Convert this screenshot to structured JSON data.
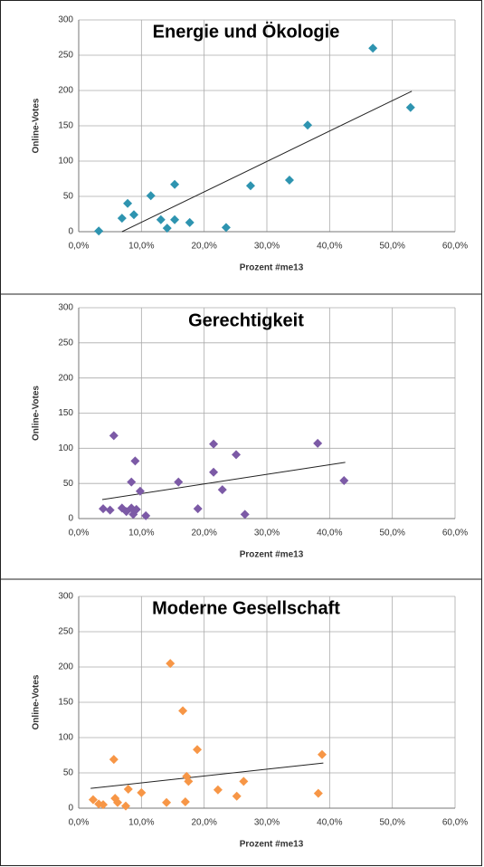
{
  "chart_data": [
    {
      "type": "scatter",
      "title": "Energie und Ökologie",
      "xlabel": "Prozent #me13",
      "ylabel": "Online-Votes",
      "color": "#2e94b0",
      "x": [
        3.2,
        6.9,
        7.8,
        8.8,
        11.5,
        13.1,
        14.1,
        15.3,
        15.3,
        17.7,
        23.5,
        27.4,
        33.6,
        36.5,
        46.9,
        52.9
      ],
      "y": [
        1,
        19,
        40,
        24,
        51,
        17,
        5,
        67,
        17,
        13,
        6,
        65,
        73,
        151,
        260,
        176
      ],
      "trend": {
        "x": [
          6.9,
          53.1
        ],
        "y": [
          0,
          199
        ]
      },
      "xlim": [
        0,
        60
      ],
      "ylim": [
        0,
        300
      ],
      "xticks": [
        {
          "value": 0,
          "label": "0,0%"
        },
        {
          "value": 10,
          "label": "10,0%"
        },
        {
          "value": 20,
          "label": "20,0%"
        },
        {
          "value": 30,
          "label": "30,0%"
        },
        {
          "value": 40,
          "label": "40,0%"
        },
        {
          "value": 50,
          "label": "50,0%"
        },
        {
          "value": 60,
          "label": "60,0%"
        }
      ],
      "yticks": [
        0,
        50,
        100,
        150,
        200,
        250,
        300
      ],
      "grid": true
    },
    {
      "type": "scatter",
      "title": "Gerechtigkeit",
      "xlabel": "Prozent #me13",
      "ylabel": "Online-Votes",
      "color": "#7c5aa6",
      "x": [
        3.9,
        5.0,
        5.6,
        6.9,
        7.6,
        8.4,
        8.4,
        8.7,
        9.0,
        9.2,
        9.8,
        10.7,
        15.9,
        19.0,
        21.5,
        21.5,
        22.9,
        25.1,
        26.5,
        38.1,
        42.3
      ],
      "y": [
        14,
        12,
        118,
        15,
        10,
        52,
        15,
        6,
        82,
        13,
        39,
        4,
        52,
        14,
        66,
        106,
        41,
        91,
        6,
        107,
        54
      ],
      "trend": {
        "x": [
          3.75,
          42.5
        ],
        "y": [
          27,
          80
        ]
      },
      "xlim": [
        0,
        60
      ],
      "ylim": [
        0,
        300
      ],
      "xticks": [
        {
          "value": 0,
          "label": "0,0%"
        },
        {
          "value": 10,
          "label": "10,0%"
        },
        {
          "value": 20,
          "label": "20,0%"
        },
        {
          "value": 30,
          "label": "30,0%"
        },
        {
          "value": 40,
          "label": "40,0%"
        },
        {
          "value": 50,
          "label": "50,0%"
        },
        {
          "value": 60,
          "label": "60,0%"
        }
      ],
      "yticks": [
        0,
        50,
        100,
        150,
        200,
        250,
        300
      ],
      "grid": true
    },
    {
      "type": "scatter",
      "title": "Moderne Gesellschaft",
      "xlabel": "Prozent #me13",
      "ylabel": "Online-Votes",
      "color": "#f79646",
      "x": [
        2.3,
        3.2,
        3.9,
        5.6,
        5.8,
        6.2,
        7.5,
        7.9,
        10.0,
        14.0,
        14.6,
        16.6,
        17.0,
        17.2,
        17.5,
        18.9,
        22.2,
        25.2,
        26.3,
        38.2,
        38.8
      ],
      "y": [
        12,
        6,
        5,
        69,
        14,
        8,
        3,
        27,
        22,
        8,
        205,
        138,
        9,
        45,
        38,
        83,
        26,
        17,
        38,
        21,
        76
      ],
      "trend": {
        "x": [
          1.9,
          39.0
        ],
        "y": [
          28,
          64
        ]
      },
      "xlim": [
        0,
        60
      ],
      "ylim": [
        0,
        300
      ],
      "xticks": [
        {
          "value": 0,
          "label": "0,0%"
        },
        {
          "value": 10,
          "label": "10,0%"
        },
        {
          "value": 20,
          "label": "20,0%"
        },
        {
          "value": 30,
          "label": "30,0%"
        },
        {
          "value": 40,
          "label": "40,0%"
        },
        {
          "value": 50,
          "label": "50,0%"
        },
        {
          "value": 60,
          "label": "60,0%"
        }
      ],
      "yticks": [
        0,
        50,
        100,
        150,
        200,
        250,
        300
      ],
      "grid": true
    }
  ]
}
